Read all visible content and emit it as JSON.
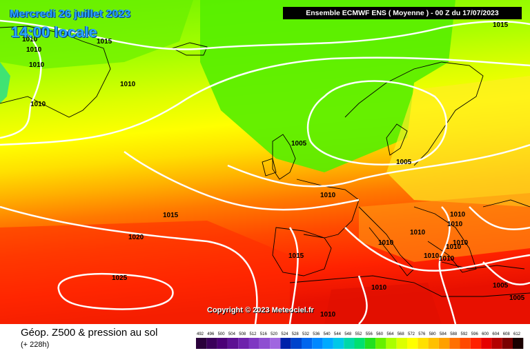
{
  "overlay": {
    "date_text": "Mercredi 26 juillet 2023",
    "time_text": "14:00 locale",
    "model_header": "Ensemble ECMWF ENS  ( Moyenne )  -  00 Z du 17/07/2023",
    "copyright": "Copyright © 2023 Meteociel.fr"
  },
  "footer": {
    "title": "Géop. Z500 & pression au sol",
    "subtitle": "(+ 228h)"
  },
  "legend": {
    "ticks": [
      "492",
      "496",
      "500",
      "504",
      "508",
      "512",
      "516",
      "520",
      "524",
      "528",
      "532",
      "536",
      "540",
      "544",
      "548",
      "552",
      "556",
      "560",
      "564",
      "568",
      "572",
      "576",
      "580",
      "584",
      "588",
      "592",
      "596",
      "600",
      "604",
      "608",
      "612"
    ],
    "colors": [
      "#2a003a",
      "#3b005a",
      "#4c0077",
      "#5d1193",
      "#6e22ac",
      "#7f38c2",
      "#8e4fd1",
      "#a066e0",
      "#0022aa",
      "#0044cc",
      "#0066ee",
      "#0088ff",
      "#00aaff",
      "#00c8e8",
      "#00d8a8",
      "#00e070",
      "#22e020",
      "#66f000",
      "#aaff00",
      "#ddff00",
      "#ffff00",
      "#ffe000",
      "#ffc000",
      "#ffa000",
      "#ff7000",
      "#ff4a00",
      "#ff2200",
      "#e60000",
      "#b40000",
      "#7a0000",
      "#1a0000"
    ]
  },
  "isobar_labels": {
    "l1": "1015",
    "l2": "1015",
    "l3": "1010",
    "l4": "1010",
    "l5": "1010",
    "l6": "1010",
    "l7": "1010",
    "l8": "1005",
    "l9": "1005",
    "l10": "1010",
    "l11": "1015",
    "l12": "1020",
    "l13": "1025",
    "l14": "1015",
    "l15": "1010",
    "l16": "1010",
    "l17": "1010",
    "l18": "1010",
    "l19": "1010",
    "l20": "1010",
    "l21": "1010",
    "l22": "1010",
    "l23": "1010",
    "l24": "1005",
    "l25": "1005",
    "l26": "1010"
  }
}
